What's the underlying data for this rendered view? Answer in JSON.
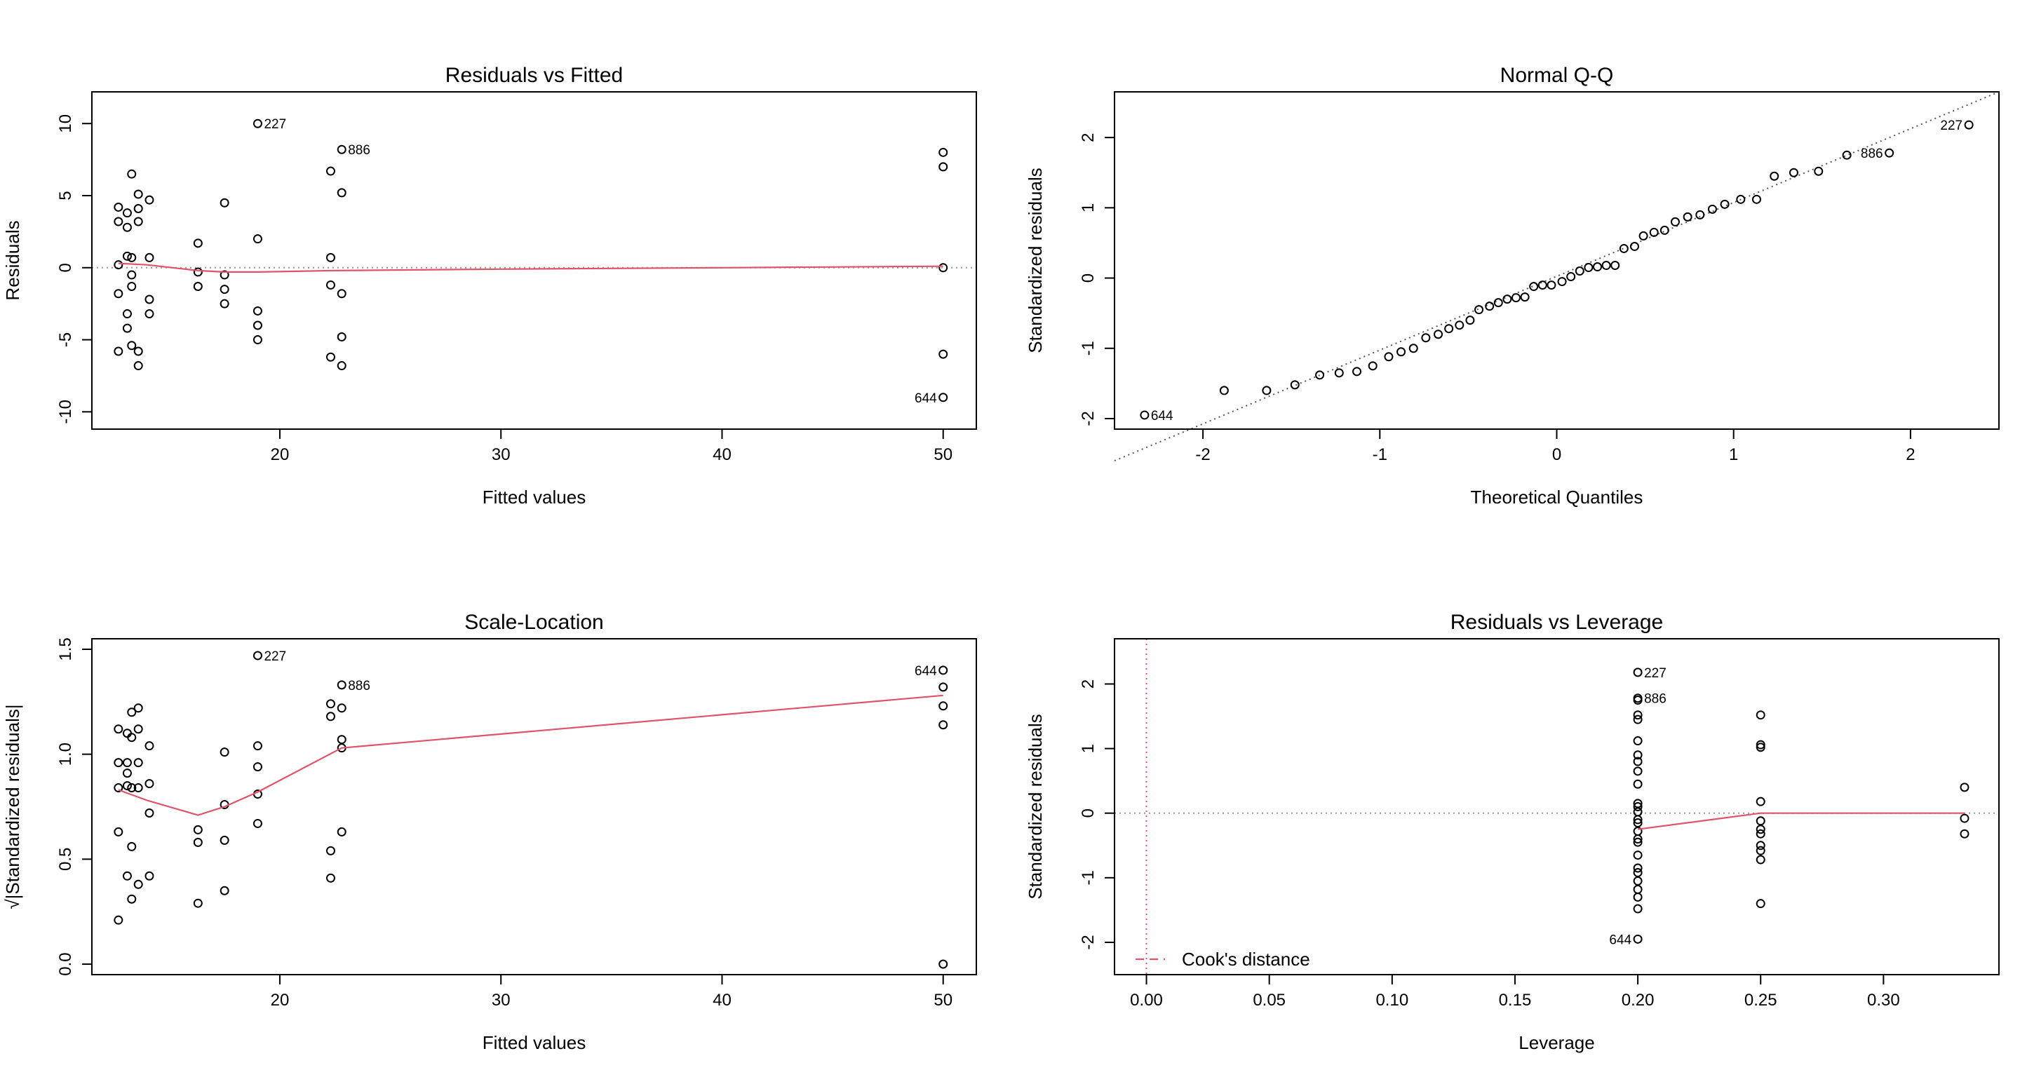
{
  "chart_data": [
    {
      "type": "scatter",
      "title": "Residuals vs Fitted",
      "xlabel": "Fitted values",
      "ylabel": "Residuals",
      "xlim": [
        11.5,
        51.5
      ],
      "ylim": [
        -11.2,
        12.2
      ],
      "xticks": [
        20,
        30,
        40,
        50
      ],
      "yticks": [
        -10,
        -5,
        0,
        5,
        10
      ],
      "reference_lines": [
        {
          "orientation": "horizontal",
          "value": 0,
          "style": "dotted",
          "color": "#999999"
        }
      ],
      "points": [
        [
          12.7,
          4.2
        ],
        [
          12.7,
          3.2
        ],
        [
          12.7,
          0.2
        ],
        [
          12.7,
          -1.8
        ],
        [
          12.7,
          -5.8
        ],
        [
          13.1,
          3.8
        ],
        [
          13.1,
          2.8
        ],
        [
          13.1,
          0.8
        ],
        [
          13.1,
          -3.2
        ],
        [
          13.1,
          -4.2
        ],
        [
          13.3,
          6.5
        ],
        [
          13.3,
          0.7
        ],
        [
          13.3,
          -0.5
        ],
        [
          13.3,
          -1.3
        ],
        [
          13.3,
          -5.4
        ],
        [
          13.6,
          5.1
        ],
        [
          13.6,
          4.1
        ],
        [
          13.6,
          3.2
        ],
        [
          13.6,
          -5.8
        ],
        [
          13.6,
          -6.8
        ],
        [
          14.1,
          4.7
        ],
        [
          14.1,
          0.7
        ],
        [
          14.1,
          -2.2
        ],
        [
          14.1,
          -3.2
        ],
        [
          16.3,
          1.7
        ],
        [
          16.3,
          -0.3
        ],
        [
          16.3,
          -1.3
        ],
        [
          17.5,
          4.5
        ],
        [
          17.5,
          -0.5
        ],
        [
          17.5,
          -1.5
        ],
        [
          17.5,
          -2.5
        ],
        [
          19.0,
          10.0
        ],
        [
          19.0,
          2.0
        ],
        [
          19.0,
          -3.0
        ],
        [
          19.0,
          -4.0
        ],
        [
          19.0,
          -5.0
        ],
        [
          22.3,
          6.7
        ],
        [
          22.3,
          0.7
        ],
        [
          22.3,
          -1.2
        ],
        [
          22.3,
          -6.2
        ],
        [
          22.8,
          8.2
        ],
        [
          22.8,
          5.2
        ],
        [
          22.8,
          -1.8
        ],
        [
          22.8,
          -4.8
        ],
        [
          22.8,
          -6.8
        ],
        [
          50.0,
          8.0
        ],
        [
          50.0,
          7.0
        ],
        [
          50.0,
          0.0
        ],
        [
          50.0,
          -6.0
        ],
        [
          50.0,
          -9.0
        ]
      ],
      "smooth": {
        "color": "#DF536B",
        "points": [
          [
            12.7,
            0.3
          ],
          [
            14.0,
            0.2
          ],
          [
            16.3,
            -0.2
          ],
          [
            17.5,
            -0.3
          ],
          [
            19.0,
            -0.3
          ],
          [
            22.5,
            -0.2
          ],
          [
            30,
            -0.1
          ],
          [
            40,
            0.0
          ],
          [
            50,
            0.1
          ]
        ]
      },
      "annotations": [
        {
          "text": "227",
          "x": 19.0,
          "y": 10.0,
          "side": "right"
        },
        {
          "text": "886",
          "x": 22.8,
          "y": 8.2,
          "side": "right"
        },
        {
          "text": "644",
          "x": 50.0,
          "y": -9.0,
          "side": "left"
        }
      ]
    },
    {
      "type": "scatter",
      "title": "Normal Q-Q",
      "xlabel": "Theoretical Quantiles",
      "ylabel": "Standardized residuals",
      "xlim": [
        -2.5,
        2.5
      ],
      "ylim": [
        -2.15,
        2.65
      ],
      "xticks": [
        -2,
        -1,
        0,
        1,
        2
      ],
      "yticks": [
        -2,
        -1,
        0,
        1,
        2
      ],
      "reference_lines": [
        {
          "orientation": "diagonal",
          "from": [
            -2.5,
            -2.6
          ],
          "to": [
            2.5,
            2.65
          ],
          "style": "dotted",
          "color": "#555555"
        }
      ],
      "points": [
        [
          -2.33,
          -1.95
        ],
        [
          -1.88,
          -1.6
        ],
        [
          -1.64,
          -1.6
        ],
        [
          -1.48,
          -1.52
        ],
        [
          -1.34,
          -1.38
        ],
        [
          -1.23,
          -1.35
        ],
        [
          -1.13,
          -1.33
        ],
        [
          -1.04,
          -1.25
        ],
        [
          -0.95,
          -1.12
        ],
        [
          -0.88,
          -1.05
        ],
        [
          -0.81,
          -1.0
        ],
        [
          -0.74,
          -0.85
        ],
        [
          -0.67,
          -0.8
        ],
        [
          -0.61,
          -0.72
        ],
        [
          -0.55,
          -0.67
        ],
        [
          -0.49,
          -0.6
        ],
        [
          -0.44,
          -0.45
        ],
        [
          -0.38,
          -0.4
        ],
        [
          -0.33,
          -0.35
        ],
        [
          -0.28,
          -0.3
        ],
        [
          -0.23,
          -0.28
        ],
        [
          -0.18,
          -0.27
        ],
        [
          -0.13,
          -0.12
        ],
        [
          -0.08,
          -0.1
        ],
        [
          -0.03,
          -0.1
        ],
        [
          0.03,
          -0.05
        ],
        [
          0.08,
          0.02
        ],
        [
          0.13,
          0.1
        ],
        [
          0.18,
          0.15
        ],
        [
          0.23,
          0.16
        ],
        [
          0.28,
          0.18
        ],
        [
          0.33,
          0.18
        ],
        [
          0.38,
          0.42
        ],
        [
          0.44,
          0.45
        ],
        [
          0.49,
          0.6
        ],
        [
          0.55,
          0.65
        ],
        [
          0.61,
          0.68
        ],
        [
          0.67,
          0.8
        ],
        [
          0.74,
          0.87
        ],
        [
          0.81,
          0.9
        ],
        [
          0.88,
          0.98
        ],
        [
          0.95,
          1.05
        ],
        [
          1.04,
          1.12
        ],
        [
          1.13,
          1.12
        ],
        [
          1.23,
          1.45
        ],
        [
          1.34,
          1.5
        ],
        [
          1.48,
          1.52
        ],
        [
          1.64,
          1.75
        ],
        [
          1.88,
          1.78
        ],
        [
          2.33,
          2.18
        ]
      ],
      "annotations": [
        {
          "text": "227",
          "x": 2.33,
          "y": 2.18,
          "side": "left"
        },
        {
          "text": "886",
          "x": 1.88,
          "y": 1.78,
          "side": "left"
        },
        {
          "text": "644",
          "x": -2.33,
          "y": -1.95,
          "side": "right"
        }
      ]
    },
    {
      "type": "scatter",
      "title": "Scale-Location",
      "xlabel": "Fitted values",
      "ylabel": "√|Standardized residuals|",
      "xlim": [
        11.5,
        51.5
      ],
      "ylim": [
        -0.05,
        1.55
      ],
      "xticks": [
        20,
        30,
        40,
        50
      ],
      "yticks": [
        0.0,
        0.5,
        1.0,
        1.5
      ],
      "ytick_labels": [
        "0.0",
        "0.5",
        "1.0",
        "1.5"
      ],
      "points": [
        [
          12.7,
          1.12
        ],
        [
          12.7,
          0.96
        ],
        [
          12.7,
          0.84
        ],
        [
          12.7,
          0.63
        ],
        [
          12.7,
          0.21
        ],
        [
          13.1,
          1.1
        ],
        [
          13.1,
          0.96
        ],
        [
          13.1,
          0.91
        ],
        [
          13.1,
          0.85
        ],
        [
          13.1,
          0.42
        ],
        [
          13.3,
          1.2
        ],
        [
          13.3,
          1.08
        ],
        [
          13.3,
          0.84
        ],
        [
          13.3,
          0.56
        ],
        [
          13.3,
          0.31
        ],
        [
          13.6,
          1.22
        ],
        [
          13.6,
          1.12
        ],
        [
          13.6,
          0.96
        ],
        [
          13.6,
          0.84
        ],
        [
          13.6,
          0.38
        ],
        [
          14.1,
          1.04
        ],
        [
          14.1,
          0.86
        ],
        [
          14.1,
          0.72
        ],
        [
          14.1,
          0.42
        ],
        [
          16.3,
          0.64
        ],
        [
          16.3,
          0.58
        ],
        [
          16.3,
          0.29
        ],
        [
          17.5,
          1.01
        ],
        [
          17.5,
          0.76
        ],
        [
          17.5,
          0.59
        ],
        [
          17.5,
          0.35
        ],
        [
          19.0,
          1.47
        ],
        [
          19.0,
          1.04
        ],
        [
          19.0,
          0.94
        ],
        [
          19.0,
          0.81
        ],
        [
          19.0,
          0.67
        ],
        [
          22.3,
          1.24
        ],
        [
          22.3,
          1.18
        ],
        [
          22.3,
          0.54
        ],
        [
          22.3,
          0.41
        ],
        [
          22.8,
          1.33
        ],
        [
          22.8,
          1.22
        ],
        [
          22.8,
          1.07
        ],
        [
          22.8,
          1.03
        ],
        [
          22.8,
          0.63
        ],
        [
          50.0,
          1.4
        ],
        [
          50.0,
          1.32
        ],
        [
          50.0,
          1.23
        ],
        [
          50.0,
          1.14
        ],
        [
          50.0,
          0.0
        ]
      ],
      "smooth": {
        "color": "#DF536B",
        "points": [
          [
            12.7,
            0.83
          ],
          [
            14.0,
            0.78
          ],
          [
            16.3,
            0.71
          ],
          [
            17.5,
            0.75
          ],
          [
            19.0,
            0.82
          ],
          [
            22.8,
            1.03
          ],
          [
            50.0,
            1.28
          ]
        ]
      },
      "annotations": [
        {
          "text": "227",
          "x": 19.0,
          "y": 1.47,
          "side": "right"
        },
        {
          "text": "886",
          "x": 22.8,
          "y": 1.33,
          "side": "right"
        },
        {
          "text": "644",
          "x": 50.0,
          "y": 1.4,
          "side": "left"
        }
      ]
    },
    {
      "type": "scatter",
      "title": "Residuals vs Leverage",
      "xlabel": "Leverage",
      "ylabel": "Standardized residuals",
      "xlim": [
        -0.013,
        0.347
      ],
      "ylim": [
        -2.5,
        2.7
      ],
      "xticks": [
        0.0,
        0.05,
        0.1,
        0.15,
        0.2,
        0.25,
        0.3
      ],
      "xtick_labels": [
        "0.00",
        "0.05",
        "0.10",
        "0.15",
        "0.20",
        "0.25",
        "0.30"
      ],
      "yticks": [
        -2,
        -1,
        0,
        1,
        2
      ],
      "reference_lines": [
        {
          "orientation": "horizontal",
          "value": 0,
          "style": "dotted",
          "color": "#999999"
        },
        {
          "orientation": "vertical",
          "value": 0,
          "style": "dotted",
          "color": "#DF536B"
        }
      ],
      "points": [
        [
          0.2,
          2.18
        ],
        [
          0.2,
          1.78
        ],
        [
          0.2,
          1.75
        ],
        [
          0.2,
          1.52
        ],
        [
          0.2,
          1.45
        ],
        [
          0.2,
          1.12
        ],
        [
          0.2,
          0.9
        ],
        [
          0.2,
          0.8
        ],
        [
          0.2,
          0.65
        ],
        [
          0.2,
          0.45
        ],
        [
          0.2,
          0.15
        ],
        [
          0.2,
          0.1
        ],
        [
          0.2,
          0.02
        ],
        [
          0.2,
          -0.1
        ],
        [
          0.2,
          -0.15
        ],
        [
          0.2,
          -0.28
        ],
        [
          0.2,
          -0.4
        ],
        [
          0.2,
          -0.45
        ],
        [
          0.2,
          -0.65
        ],
        [
          0.2,
          -0.85
        ],
        [
          0.2,
          -0.92
        ],
        [
          0.2,
          -1.05
        ],
        [
          0.2,
          -1.18
        ],
        [
          0.2,
          -1.3
        ],
        [
          0.2,
          -1.48
        ],
        [
          0.2,
          -1.95
        ],
        [
          0.25,
          1.52
        ],
        [
          0.25,
          1.06
        ],
        [
          0.25,
          1.02
        ],
        [
          0.25,
          0.18
        ],
        [
          0.25,
          -0.12
        ],
        [
          0.25,
          -0.25
        ],
        [
          0.25,
          -0.32
        ],
        [
          0.25,
          -0.5
        ],
        [
          0.25,
          -0.58
        ],
        [
          0.25,
          -0.72
        ],
        [
          0.25,
          -1.4
        ],
        [
          0.333,
          0.4
        ],
        [
          0.333,
          -0.08
        ],
        [
          0.333,
          -0.32
        ]
      ],
      "smooth": {
        "color": "#DF536B",
        "points": [
          [
            0.2,
            -0.25
          ],
          [
            0.25,
            0.0
          ],
          [
            0.333,
            0.0
          ]
        ]
      },
      "annotations": [
        {
          "text": "227",
          "x": 0.2,
          "y": 2.18,
          "side": "right"
        },
        {
          "text": "886",
          "x": 0.2,
          "y": 1.78,
          "side": "right"
        },
        {
          "text": "644",
          "x": 0.2,
          "y": -1.95,
          "side": "left"
        }
      ],
      "legend": {
        "position": "bottom-left",
        "entries": [
          {
            "label": "Cook's distance",
            "style": "dashed",
            "color": "#DF536B"
          }
        ]
      }
    }
  ]
}
